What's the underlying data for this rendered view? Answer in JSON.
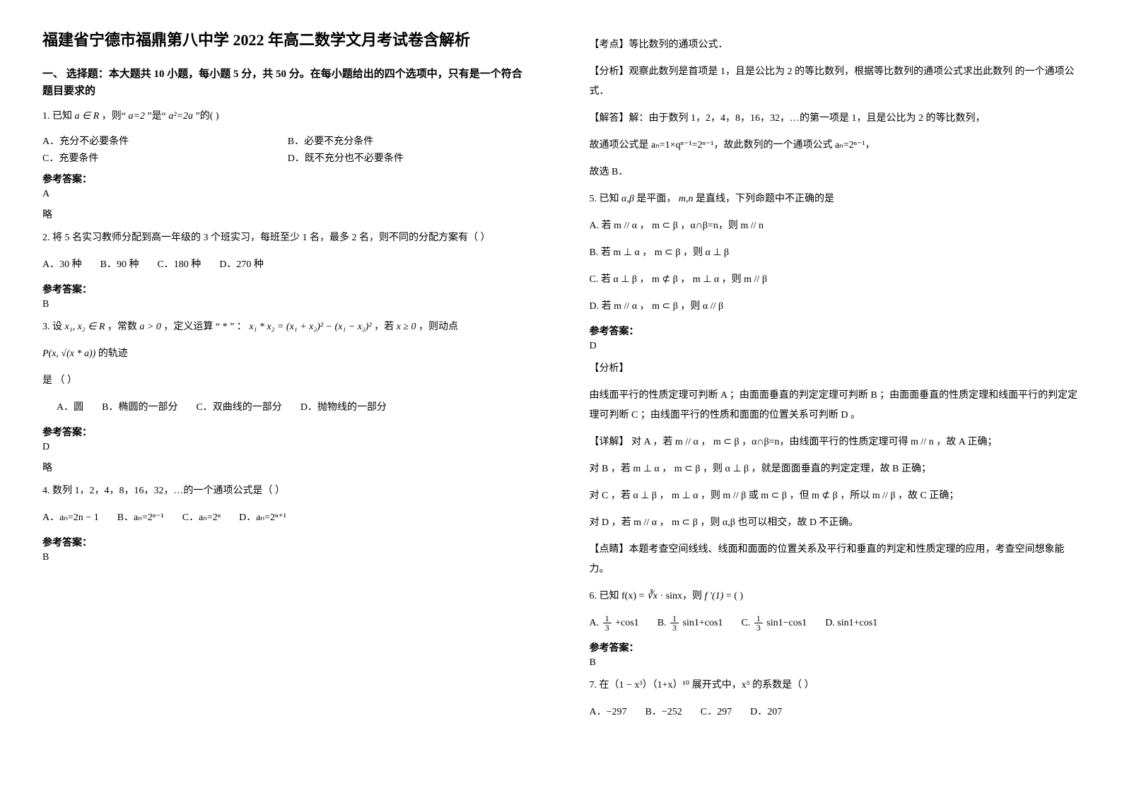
{
  "left": {
    "title": "福建省宁德市福鼎第八中学 2022 年高二数学文月考试卷含解析",
    "section1_head": "一、 选择题：本大题共 10 小题，每小题 5 分，共 50 分。在每小题给出的四个选项中，只有是一个符合题目要求的",
    "q1": {
      "stem_pre": "1. 已知",
      "stem_math": "a ∈ R",
      "stem_mid": " ，则“",
      "stem_eq1": "a=2",
      "stem_mid2": "”是“",
      "stem_eq2": "a²=2a",
      "stem_post": "”的(    )",
      "A": "A．充分不必要条件",
      "B": "B．必要不充分条件",
      "C": "C．充要条件",
      "D": "D．既不充分也不必要条件",
      "ans_label": "参考答案：",
      "ans": "A",
      "note": "略"
    },
    "q2": {
      "stem": "2. 将 5 名实习教师分配到高一年级的 3 个班实习，每班至少 1 名，最多 2 名，则不同的分配方案有（        ）",
      "A": "A．30 种",
      "B": "B．90 种",
      "C": "C．180 种",
      "D": "D．270 种",
      "ans_label": "参考答案：",
      "ans": "B"
    },
    "q3": {
      "stem_l1_a": "3. 设",
      "stem_l1_m1": "x₁, x₂ ∈ R",
      "stem_l1_b": " ，常数",
      "stem_l1_m2": " a > 0 ",
      "stem_l1_c": "，定义运算 “ * ” ：",
      "stem_l1_m3": " x₁ * x₂ = (x₁ + x₂)² − (x₁ − x₂)²",
      "stem_l1_d": " ，若",
      "stem_l1_m4": " x ≥ 0",
      "stem_l1_e": "，则动点",
      "stem_l2_m": "P(x, √(x * a))",
      "stem_l2_t": " 的轨迹",
      "stem_l3": "是     （        ）",
      "A": "A．圆",
      "B": "B．椭圆的一部分",
      "C": "C．双曲线的一部分",
      "D": "D．抛物线的一部分",
      "ans_label": "参考答案：",
      "ans": "D",
      "note": "略"
    },
    "q4": {
      "stem": "4. 数列 1，2，4，8，16，32，…的一个通项公式是（    ）",
      "A": "A．aₙ=2n − 1",
      "B": "B．aₙ=2ⁿ⁻¹",
      "C": "C．aₙ=2ⁿ",
      "D": "D．aₙ=2ⁿ⁺¹",
      "ans_label": "参考答案：",
      "ans": "B"
    }
  },
  "right": {
    "q4_explain": {
      "pt": "【考点】等比数列的通项公式．",
      "fx": "【分析】观察此数列是首项是 1，且是公比为 2 的等比数列，根据等比数列的通项公式求出此数列 的一个通项公式．",
      "jd": "【解答】解：由于数列 1，2，4，8，16，32，…的第一项是 1，且是公比为 2 的等比数列，",
      "jd2": "故通项公式是  aₙ=1×qⁿ⁻¹=2ⁿ⁻¹，故此数列的一个通项公式 aₙ=2ⁿ⁻¹，",
      "jd3": "故选 B．"
    },
    "q5": {
      "stem_a": "5. 已知",
      "stem_m1": "α,β",
      "stem_b": " 是平面，",
      "stem_m2": "m,n",
      "stem_c": " 是直线，下列命题中不正确的是",
      "A": "A. 若 m // α ， m ⊂ β  ，α∩β=n，则 m // n",
      "B": "B. 若 m ⊥ α ， m ⊂ β ，则 α ⊥ β",
      "C": "C. 若 α ⊥ β ， m ⊄ β  ， m ⊥ α ，则 m // β",
      "D": "D. 若 m // α ， m ⊂ β ，则 α // β",
      "ans_label": "参考答案：",
      "ans": "D",
      "fx_h": "【分析】",
      "fx": "由线面平行的性质定理可判断 A ；由面面垂直的判定定理可判断 B ；由面面垂直的性质定理和线面平行的判定定理可判断 C ；由线面平行的性质和面面的位置关系可判断 D 。",
      "xj_h": "【详解】",
      "xjA": "对 A ，若 m // α ， m ⊂ β  ，α∩β=n，由线面平行的性质定理可得 m // n ，故 A 正确；",
      "xjB": "对 B ，若 m ⊥ α ， m ⊂ β ，则 α ⊥ β ，就是面面垂直的判定定理，故 B 正确；",
      "xjC": "对 C ，若 α ⊥ β ， m ⊥ α ，则 m // β 或 m ⊂ β ，但 m ⊄ β ，所以 m // β ，故 C 正确；",
      "xjD": "对 D ，若 m // α ， m ⊂ β ，则 α,β 也可以相交，故 D 不正确。",
      "dj": "【点睛】本题考查空间线线、线面和面面的位置关系及平行和垂直的判定和性质定理的应用，考查空间想象能力。"
    },
    "q6": {
      "stem_a": "6. 已知 f(x) = ",
      "stem_m1": "∛x",
      "stem_b": " · sinx，则",
      "stem_m2": " f ′(1)",
      "stem_c": " = (       )",
      "A_pre": "A. ",
      "A_post": " +cos1",
      "B_pre": "B. ",
      "B_post": " sin1+cos1",
      "C_pre": "C. ",
      "C_post": " sin1−cos1",
      "D": "D. sin1+cos1",
      "ans_label": "参考答案：",
      "ans": "B"
    },
    "q7": {
      "stem": "7. 在（1 − x³）（1+x）¹⁰ 展开式中，x⁵ 的系数是（    ）",
      "A": "A．−297",
      "B": "B．−252",
      "C": "C．297",
      "D": "D．207"
    }
  }
}
